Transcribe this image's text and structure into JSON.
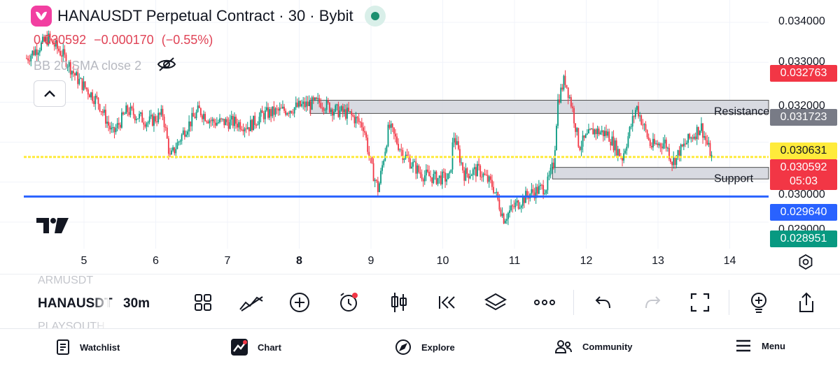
{
  "header": {
    "title": "HANAUSDT Perpetual Contract · 30 · Bybit",
    "price": "0.030592",
    "change": "−0.000170",
    "change_pct": "(−0.55%)",
    "indicator_label": "BB 20 SMA close 2"
  },
  "price_axis": {
    "ticks": [
      "0.034000",
      "0.033000",
      "0.032000",
      "0.030000",
      "0.029000"
    ],
    "labels": [
      {
        "name": "price-label-high",
        "value": "0.032763",
        "bg": "#f23645",
        "fg": "#ffffff"
      },
      {
        "name": "price-label-resistance",
        "value": "0.031723",
        "bg": "#787b86",
        "fg": "#ffffff"
      },
      {
        "name": "price-label-yellow-line",
        "value": "0.030631",
        "bg": "#ffeb3b",
        "fg": "#131722"
      },
      {
        "name": "price-label-current",
        "value": "0.030592",
        "bg": "#f23645",
        "fg": "#ffffff"
      },
      {
        "name": "countdown-label",
        "value": "05:03",
        "bg": "#f23645",
        "fg": "#ffffff"
      },
      {
        "name": "price-label-blue-line",
        "value": "0.029640",
        "bg": "#2962ff",
        "fg": "#ffffff"
      },
      {
        "name": "price-label-low",
        "value": "0.028951",
        "bg": "#089981",
        "fg": "#ffffff"
      }
    ]
  },
  "zones": {
    "resistance_label": "Resistance",
    "support_label": "Support"
  },
  "chart_data": {
    "type": "candlestick",
    "symbol": "HANAUSDT",
    "interval": "30m",
    "xticks": [
      "5",
      "6",
      "7",
      "8",
      "9",
      "10",
      "11",
      "12",
      "13",
      "14"
    ],
    "yticks": [
      0.029,
      0.03,
      0.031,
      0.032,
      0.033,
      0.034
    ],
    "ylim": [
      0.0286,
      0.0345
    ],
    "horizontal_lines": [
      {
        "value": 0.030631,
        "color": "#ffeb3b",
        "style": "dotted"
      },
      {
        "value": 0.02964,
        "color": "#2962ff",
        "style": "solid"
      }
    ],
    "zones": [
      {
        "label": "Resistance",
        "from": 0.03172,
        "to": 0.03205
      },
      {
        "label": "Support",
        "from": 0.03008,
        "to": 0.03037
      }
    ],
    "close_path": [
      [
        4.2,
        0.0331
      ],
      [
        4.5,
        0.0336
      ],
      [
        4.7,
        0.0332
      ],
      [
        4.9,
        0.0326
      ],
      [
        5.2,
        0.032
      ],
      [
        5.4,
        0.0312
      ],
      [
        5.6,
        0.0318
      ],
      [
        5.9,
        0.0315
      ],
      [
        6.1,
        0.0317
      ],
      [
        6.2,
        0.0306
      ],
      [
        6.4,
        0.0313
      ],
      [
        6.6,
        0.0318
      ],
      [
        6.8,
        0.0315
      ],
      [
        7.1,
        0.0315
      ],
      [
        7.3,
        0.0314
      ],
      [
        7.5,
        0.0317
      ],
      [
        7.8,
        0.0318
      ],
      [
        8.0,
        0.0319
      ],
      [
        8.3,
        0.032
      ],
      [
        8.5,
        0.0318
      ],
      [
        8.7,
        0.0317
      ],
      [
        8.9,
        0.0314
      ],
      [
        9.0,
        0.0304
      ],
      [
        9.1,
        0.0298
      ],
      [
        9.25,
        0.0314
      ],
      [
        9.45,
        0.0307
      ],
      [
        9.7,
        0.0302
      ],
      [
        9.9,
        0.0301
      ],
      [
        10.1,
        0.0301
      ],
      [
        10.15,
        0.0312
      ],
      [
        10.3,
        0.0302
      ],
      [
        10.5,
        0.0303
      ],
      [
        10.7,
        0.0299
      ],
      [
        10.85,
        0.0291
      ],
      [
        11.0,
        0.0294
      ],
      [
        11.2,
        0.0297
      ],
      [
        11.45,
        0.0299
      ],
      [
        11.55,
        0.0305
      ],
      [
        11.6,
        0.032
      ],
      [
        11.7,
        0.0326
      ],
      [
        11.8,
        0.0319
      ],
      [
        11.9,
        0.0309
      ],
      [
        12.1,
        0.0313
      ],
      [
        12.3,
        0.0312
      ],
      [
        12.5,
        0.0306
      ],
      [
        12.7,
        0.0319
      ],
      [
        12.9,
        0.0309
      ],
      [
        13.1,
        0.031
      ],
      [
        13.2,
        0.0305
      ],
      [
        13.4,
        0.031
      ],
      [
        13.6,
        0.0314
      ],
      [
        13.75,
        0.0306
      ]
    ]
  },
  "toolbar": {
    "prev_symbol": "ARMUSDT",
    "symbol": "HANAUSDT",
    "next_symbol": "PLAYSOUTH",
    "interval": "30m"
  },
  "nav": {
    "watchlist": "Watchlist",
    "chart": "Chart",
    "explore": "Explore",
    "community": "Community",
    "menu": "Menu"
  },
  "colors": {
    "up": "#089981",
    "down": "#f23645",
    "accent_blue": "#2962ff",
    "accent_yellow": "#ffeb3b"
  }
}
